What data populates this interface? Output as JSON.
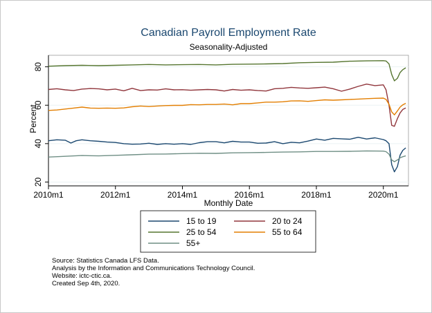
{
  "chart_data": {
    "type": "line",
    "title": "Canadian Payroll Employment Rate",
    "subtitle": "Seasonality-Adjusted",
    "xlabel": "Monthly Date",
    "ylabel": "Percent",
    "xlim": [
      2010.0,
      2020.75
    ],
    "ylim": [
      18,
      86
    ],
    "xticks": [
      {
        "value": 2010,
        "label": "2010m1"
      },
      {
        "value": 2012,
        "label": "2012m1"
      },
      {
        "value": 2014,
        "label": "2014m1"
      },
      {
        "value": 2016,
        "label": "2016m1"
      },
      {
        "value": 2018,
        "label": "2018m1"
      },
      {
        "value": 2020,
        "label": "2020m1"
      }
    ],
    "yticks": [
      {
        "value": 20,
        "label": "20"
      },
      {
        "value": 40,
        "label": "40"
      },
      {
        "value": 60,
        "label": "60"
      },
      {
        "value": 80,
        "label": "80"
      }
    ],
    "legend_position": "bottom",
    "series": [
      {
        "name": "15 to 19",
        "color": "#1a476f",
        "points": [
          [
            2010.0,
            41.5
          ],
          [
            2010.25,
            42.0
          ],
          [
            2010.5,
            41.8
          ],
          [
            2010.67,
            40.3
          ],
          [
            2010.83,
            41.5
          ],
          [
            2011.0,
            42.0
          ],
          [
            2011.25,
            41.5
          ],
          [
            2011.5,
            41.2
          ],
          [
            2011.75,
            40.8
          ],
          [
            2012.0,
            40.6
          ],
          [
            2012.25,
            40.0
          ],
          [
            2012.5,
            39.7
          ],
          [
            2012.75,
            39.8
          ],
          [
            2013.0,
            40.2
          ],
          [
            2013.25,
            39.6
          ],
          [
            2013.5,
            40.0
          ],
          [
            2013.75,
            39.7
          ],
          [
            2014.0,
            40.0
          ],
          [
            2014.25,
            39.6
          ],
          [
            2014.5,
            40.5
          ],
          [
            2014.75,
            41.0
          ],
          [
            2015.0,
            41.0
          ],
          [
            2015.25,
            40.4
          ],
          [
            2015.5,
            41.2
          ],
          [
            2015.75,
            40.8
          ],
          [
            2016.0,
            40.8
          ],
          [
            2016.25,
            40.2
          ],
          [
            2016.5,
            40.3
          ],
          [
            2016.75,
            41.0
          ],
          [
            2017.0,
            40.0
          ],
          [
            2017.25,
            40.7
          ],
          [
            2017.5,
            40.4
          ],
          [
            2017.75,
            41.3
          ],
          [
            2018.0,
            42.4
          ],
          [
            2018.25,
            41.8
          ],
          [
            2018.5,
            42.7
          ],
          [
            2018.75,
            42.5
          ],
          [
            2019.0,
            42.3
          ],
          [
            2019.25,
            43.3
          ],
          [
            2019.5,
            42.4
          ],
          [
            2019.75,
            43.0
          ],
          [
            2020.0,
            42.1
          ],
          [
            2020.08,
            41.5
          ],
          [
            2020.17,
            40.0
          ],
          [
            2020.25,
            29.0
          ],
          [
            2020.33,
            25.3
          ],
          [
            2020.42,
            28.0
          ],
          [
            2020.5,
            34.0
          ],
          [
            2020.58,
            36.5
          ],
          [
            2020.67,
            37.8
          ]
        ]
      },
      {
        "name": "20 to 24",
        "color": "#90353b",
        "points": [
          [
            2010.0,
            68.2
          ],
          [
            2010.25,
            68.6
          ],
          [
            2010.5,
            68.0
          ],
          [
            2010.75,
            67.6
          ],
          [
            2011.0,
            68.4
          ],
          [
            2011.25,
            68.7
          ],
          [
            2011.5,
            68.5
          ],
          [
            2011.75,
            68.0
          ],
          [
            2012.0,
            68.4
          ],
          [
            2012.25,
            67.5
          ],
          [
            2012.5,
            68.8
          ],
          [
            2012.75,
            67.6
          ],
          [
            2013.0,
            68.0
          ],
          [
            2013.25,
            67.9
          ],
          [
            2013.5,
            68.5
          ],
          [
            2013.75,
            68.0
          ],
          [
            2014.0,
            68.1
          ],
          [
            2014.25,
            67.8
          ],
          [
            2014.5,
            68.0
          ],
          [
            2014.75,
            68.2
          ],
          [
            2015.0,
            68.0
          ],
          [
            2015.25,
            67.4
          ],
          [
            2015.5,
            68.2
          ],
          [
            2015.75,
            67.8
          ],
          [
            2016.0,
            68.0
          ],
          [
            2016.25,
            67.6
          ],
          [
            2016.5,
            67.4
          ],
          [
            2016.75,
            68.6
          ],
          [
            2017.0,
            68.8
          ],
          [
            2017.25,
            69.3
          ],
          [
            2017.5,
            69.0
          ],
          [
            2017.75,
            68.8
          ],
          [
            2018.0,
            69.1
          ],
          [
            2018.25,
            69.4
          ],
          [
            2018.5,
            68.6
          ],
          [
            2018.75,
            67.3
          ],
          [
            2019.0,
            68.4
          ],
          [
            2019.25,
            69.8
          ],
          [
            2019.5,
            71.0
          ],
          [
            2019.75,
            70.2
          ],
          [
            2020.0,
            70.6
          ],
          [
            2020.08,
            68.0
          ],
          [
            2020.17,
            60.0
          ],
          [
            2020.25,
            49.5
          ],
          [
            2020.33,
            49.0
          ],
          [
            2020.42,
            53.0
          ],
          [
            2020.5,
            56.0
          ],
          [
            2020.58,
            57.8
          ],
          [
            2020.67,
            58.6
          ]
        ]
      },
      {
        "name": "25 to 54",
        "color": "#55752f",
        "points": [
          [
            2010.0,
            80.3
          ],
          [
            2010.5,
            80.6
          ],
          [
            2011.0,
            80.8
          ],
          [
            2011.5,
            80.6
          ],
          [
            2012.0,
            80.8
          ],
          [
            2012.5,
            81.0
          ],
          [
            2013.0,
            81.2
          ],
          [
            2013.5,
            81.0
          ],
          [
            2014.0,
            81.1
          ],
          [
            2014.5,
            81.2
          ],
          [
            2015.0,
            81.0
          ],
          [
            2015.5,
            81.3
          ],
          [
            2016.0,
            81.4
          ],
          [
            2016.5,
            81.5
          ],
          [
            2017.0,
            81.7
          ],
          [
            2017.5,
            82.1
          ],
          [
            2018.0,
            82.3
          ],
          [
            2018.5,
            82.4
          ],
          [
            2019.0,
            82.9
          ],
          [
            2019.5,
            83.1
          ],
          [
            2020.0,
            83.2
          ],
          [
            2020.08,
            83.0
          ],
          [
            2020.17,
            81.5
          ],
          [
            2020.25,
            76.0
          ],
          [
            2020.33,
            72.7
          ],
          [
            2020.42,
            74.0
          ],
          [
            2020.5,
            77.0
          ],
          [
            2020.58,
            78.5
          ],
          [
            2020.67,
            79.5
          ]
        ]
      },
      {
        "name": "55 to 64",
        "color": "#e37e00",
        "points": [
          [
            2010.0,
            57.3
          ],
          [
            2010.25,
            57.5
          ],
          [
            2010.5,
            58.0
          ],
          [
            2010.75,
            58.5
          ],
          [
            2011.0,
            59.0
          ],
          [
            2011.25,
            58.5
          ],
          [
            2011.5,
            58.4
          ],
          [
            2011.75,
            58.5
          ],
          [
            2012.0,
            58.4
          ],
          [
            2012.25,
            58.6
          ],
          [
            2012.5,
            59.2
          ],
          [
            2012.75,
            59.6
          ],
          [
            2013.0,
            59.3
          ],
          [
            2013.25,
            59.6
          ],
          [
            2013.5,
            59.8
          ],
          [
            2013.75,
            59.9
          ],
          [
            2014.0,
            59.9
          ],
          [
            2014.25,
            60.3
          ],
          [
            2014.5,
            60.2
          ],
          [
            2014.75,
            60.4
          ],
          [
            2015.0,
            60.4
          ],
          [
            2015.25,
            60.6
          ],
          [
            2015.5,
            60.2
          ],
          [
            2015.75,
            60.8
          ],
          [
            2016.0,
            60.8
          ],
          [
            2016.25,
            61.2
          ],
          [
            2016.5,
            61.6
          ],
          [
            2016.75,
            61.6
          ],
          [
            2017.0,
            61.8
          ],
          [
            2017.25,
            62.2
          ],
          [
            2017.5,
            62.3
          ],
          [
            2017.75,
            62.0
          ],
          [
            2018.0,
            62.4
          ],
          [
            2018.25,
            62.8
          ],
          [
            2018.5,
            62.6
          ],
          [
            2018.75,
            62.8
          ],
          [
            2019.0,
            63.0
          ],
          [
            2019.25,
            63.2
          ],
          [
            2019.5,
            63.4
          ],
          [
            2019.75,
            63.6
          ],
          [
            2020.0,
            63.7
          ],
          [
            2020.08,
            63.0
          ],
          [
            2020.17,
            60.5
          ],
          [
            2020.25,
            56.5
          ],
          [
            2020.33,
            55.0
          ],
          [
            2020.42,
            57.0
          ],
          [
            2020.5,
            59.0
          ],
          [
            2020.58,
            60.2
          ],
          [
            2020.67,
            61.0
          ]
        ]
      },
      {
        "name": "55+",
        "color": "#6e8e84",
        "points": [
          [
            2010.0,
            33.0
          ],
          [
            2010.5,
            33.4
          ],
          [
            2011.0,
            33.8
          ],
          [
            2011.5,
            33.6
          ],
          [
            2012.0,
            33.9
          ],
          [
            2012.5,
            34.2
          ],
          [
            2013.0,
            34.5
          ],
          [
            2013.5,
            34.6
          ],
          [
            2014.0,
            34.8
          ],
          [
            2014.5,
            35.0
          ],
          [
            2015.0,
            34.9
          ],
          [
            2015.5,
            35.2
          ],
          [
            2016.0,
            35.3
          ],
          [
            2016.5,
            35.4
          ],
          [
            2017.0,
            35.6
          ],
          [
            2017.5,
            35.7
          ],
          [
            2018.0,
            35.9
          ],
          [
            2018.5,
            35.9
          ],
          [
            2019.0,
            36.0
          ],
          [
            2019.5,
            36.2
          ],
          [
            2020.0,
            36.1
          ],
          [
            2020.08,
            35.8
          ],
          [
            2020.17,
            34.5
          ],
          [
            2020.25,
            31.5
          ],
          [
            2020.33,
            30.6
          ],
          [
            2020.42,
            31.5
          ],
          [
            2020.5,
            32.6
          ],
          [
            2020.58,
            33.2
          ],
          [
            2020.67,
            33.6
          ]
        ]
      }
    ]
  },
  "legend": [
    {
      "label": "15 to 19",
      "color": "#1a476f"
    },
    {
      "label": "20 to 24",
      "color": "#90353b"
    },
    {
      "label": "25 to 54",
      "color": "#55752f"
    },
    {
      "label": "55 to 64",
      "color": "#e37e00"
    },
    {
      "label": "55+",
      "color": "#6e8e84"
    }
  ],
  "notes": {
    "line1": "Source: Statistics Canada LFS Data.",
    "line2": "Analysis by the Information and Communications Technology Council.",
    "line3": "Website: ictc-ctic.ca.",
    "line4": "Created Sep 4th, 2020."
  }
}
